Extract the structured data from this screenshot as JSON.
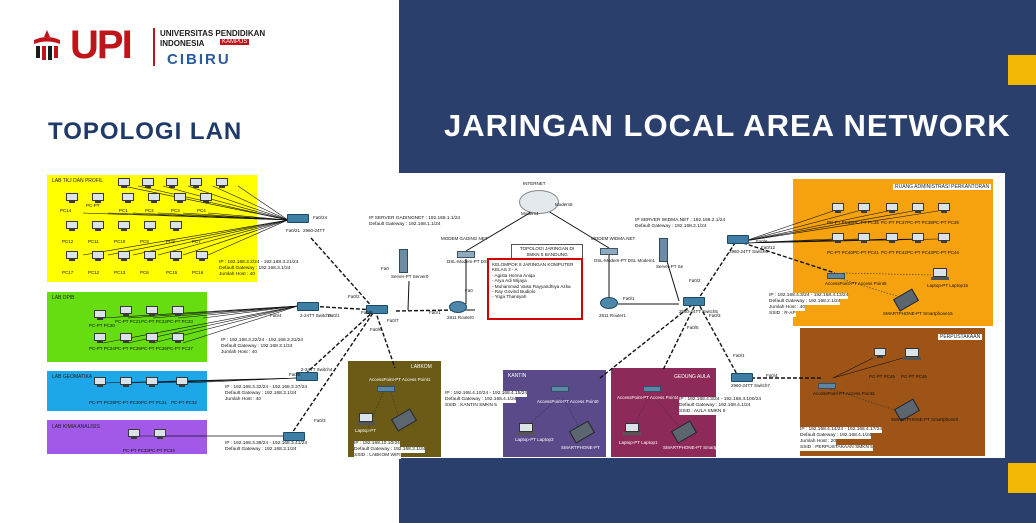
{
  "logo": {
    "line1": "UNIVERSITAS PENDIDIKAN",
    "line2": "INDONESIA",
    "kampus": "KAMPUS",
    "cibiru": "CIBIRU",
    "upi": "UPI"
  },
  "titles": {
    "left": "TOPOLOGI LAN",
    "right": "JARINGAN LOCAL AREA NETWORK"
  },
  "colors": {
    "right_bg": "#2a3f6c",
    "accent_yellow": "#f2b705",
    "brand_red": "#c0141b"
  },
  "diagram": {
    "zones": {
      "lab_tiku": "LAB TKJ DAN PROFIL",
      "lab_dpib": "LAB DPIB",
      "lab_geomatika": "LAB GEOMATIKA",
      "lab_kimia": "LAB KIMIA ANALISIS",
      "labkom": "LABKOM",
      "kantin": "KANTIN",
      "gedung_aula": "GEDUNG AULA",
      "ruang_admin": "RUANG ADMINISTRASI PERKANTORAN",
      "perpustakaan": "PERPUSTAKAAN"
    },
    "internet": "INTERNET",
    "modem4": "Modem4",
    "modem5": "Modem5",
    "modem_gading": "MODEM GADING NET",
    "modem_widma": "MODEM WIDMA.NET",
    "dsl0": "DSL-Modem-PT DSL Modem0",
    "dsl1": "DSL-Modem-PT DSL Modem1",
    "topologi_box": [
      "TOPOLOGI JARINGAN DI",
      "SMKN 5 BANDUNG"
    ],
    "kelompok": [
      "KELOMPOK 8 JARINGAN KOMPUTER",
      "KELAS 3 - A",
      "- Agista Honna Aniqa",
      "- Arya Adi Wijaya",
      "- Muhammad Vaisa Rayyandhiya Azka",
      "- Ray Govind Budiolo",
      "- Yoga Thansyah"
    ],
    "server_gading": [
      "IP SERVER GADINGNET : 192.168.1.1/24",
      "Default Gateway : 192.168.1.1/24"
    ],
    "server_widma": [
      "IP SERVER WIDMA.NET : 192.168.2.1/24",
      "Default Gateway : 192.168.2.1/24"
    ],
    "router0": "2811 Router0",
    "router1": "2811 Router1",
    "server0": "Server-PT Server0",
    "server1": "Server-PT Se",
    "switch0": "2960-24TT",
    "switch3": "2-24TT Switch3",
    "switch4": "2-24TT Switch4",
    "switch5": "2960-24TT Switch5",
    "switch6": "2960-24TT Switch6",
    "switch7": "2960-24TT Switch7",
    "info_tiku": [
      "IP : 192.168.3.2/24 - 192.168.3.21/24",
      "Default Gateway : 192.168.3.1/24",
      "Jumlah Host : 40"
    ],
    "info_dpib": [
      "IP : 192.168.3.22/24 - 192.168.3.31/24",
      "Default Gateway : 192.168.3.1/24",
      "Jumlah Host : 40"
    ],
    "info_geo": [
      "IP : 192.168.3.32/24 - 192.168.3.37/24",
      "Default Gateway : 192.168.3.1/24",
      "Jumlah Host : 40"
    ],
    "info_kimia": [
      "IP : 192.168.3.38/24 - 192.168.3.41/24",
      "Default Gateway : 192.168.3.1/24"
    ],
    "info_labkom": [
      "IP : 192.168.10.10/24",
      "Default Gateway : 192.168.3.1/24",
      "SSID : LABKOM WIFI"
    ],
    "info_kantin": [
      "IP : 192.168.4.10/24 - 192.168.4.15/24",
      "Default Gateway : 192.168.4.1/24",
      "SSID : KANTIN SMKN 5"
    ],
    "info_aula": [
      "IP : 192.168.4.3/24 - 192.168.4.100/24",
      "Default Gateway : 192.168.4.1/24",
      "SSID : AULA SMKN 5"
    ],
    "info_admin": [
      "IP : 192.168.4.3/24 - 192.168.4.13/24",
      "Default Gateway : 192.168.2.1/24",
      "Jumlah Host : 40",
      "SSID : R-AP"
    ],
    "info_perpus": [
      "IP : 192.168.4.14/24 - 192.168.4.17/24",
      "Default Gateway : 192.168.4.1/24",
      "Jumlah Host : 20",
      "SSID : PERPUSTAKAAN SMKN 5"
    ],
    "labels": {
      "ap_labkom": "AccessPoint-PT Access Point1",
      "laptop_labkom": "Laptop-PT",
      "ap_admin": "AccessPoint-PT Access Point5",
      "laptop_admin": "Laptop-PT Laptop15",
      "phone_admin": "SMARTPHONE-PT Smartphone15",
      "ap_kantin": "AccessPoint-PT Access Point0",
      "laptop_kantin": "Laptop-PT Laptop3",
      "phone_kantin": "SMARTPHONE-PT",
      "ap_aula": "AccessPoint-PT Access Point4",
      "laptop_aula": "Laptop-PT Laptop1",
      "phone_aula": "SMARTPHONE-PT Smartphone2",
      "ap_perpus": "AccessPoint-PT Access Point3",
      "phone_perpus": "SMARTPHONE-PT Smartphone3",
      "pc_perpus_a": "PC-PT PC45",
      "pc_perpus_b": "PC-PT PC46"
    },
    "pc_tiku": [
      "PC14",
      "PC-PT",
      "PC1",
      "PC2",
      "PC3",
      "PC4",
      "PC12",
      "PC11",
      "PC10",
      "PC9",
      "PC8",
      "PC7",
      "PC17",
      "PC12",
      "PC13",
      "PC6",
      "PC15",
      "PC16"
    ],
    "pc_dpib": [
      "PC-PT PC20",
      "PC-PT PC21",
      "PC-PT PC22",
      "PC-PT PC23",
      "PC-PT PC24",
      "PC-PT PC25",
      "PC-PT PC26",
      "PC-PT PC27",
      "PC-PT PC28"
    ],
    "pc_geo": [
      "PC-PT PC29",
      "PC-PT PC30",
      "PC-PT PC31",
      "PC-PT PC32"
    ],
    "pc_kimia": [
      "PC-PT PC33",
      "PC-PT PC34"
    ],
    "pc_admin": [
      "PC-PT PC35",
      "PC-PT PC36",
      "PC-PT PC37",
      "PC-PT PC38",
      "PC-PT PC39",
      "PC-PT PC40",
      "PC-PT PC41",
      "PC-PT PC42",
      "PC-PT PC43",
      "PC-PT PC44"
    ],
    "ports": {
      "fa0": "Fa0",
      "fa01": "Fa0/1",
      "fa02": "Fa0/2",
      "fa03": "Fa0/3",
      "fa04": "Fa0/4",
      "fa05": "Fa0/5",
      "fa06": "Fa0/6",
      "fa07": "Fa0/7",
      "fa08": "Fa0/8",
      "fa012": "Fa0/12",
      "fa021": "Fa0/21",
      "fa024": "Fa0/24"
    }
  }
}
